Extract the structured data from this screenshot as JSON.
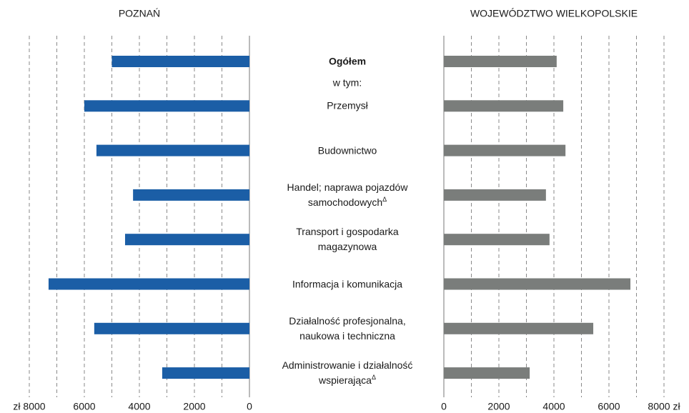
{
  "chart_data": {
    "type": "bar",
    "categories": [
      "Ogółem",
      "Przemysł",
      "Budownictwo",
      "Handel; naprawa pojazdów\nsamochodowych",
      "Transport i gospodarka\nmagazynowa",
      "Informacja i komunikacja",
      "Działalność profesjonalna,\nnaukowa i techniczna",
      "Administrowanie i działalność\nwspierająca"
    ],
    "category_marks": [
      null,
      null,
      null,
      "Δ",
      null,
      null,
      null,
      "Δ"
    ],
    "category_note": "w tym:",
    "xlim": [
      0,
      8000
    ],
    "minor_xticks": [
      1000,
      3000,
      5000,
      7000
    ],
    "grid": true,
    "series": [
      {
        "name": "POZNAŃ",
        "color": "#1b5ea6",
        "direction": "left",
        "values": [
          5000,
          6000,
          5560,
          4230,
          4520,
          7300,
          5640,
          3170
        ],
        "xticks": [
          0,
          2000,
          4000,
          6000,
          {
            "value": 8000,
            "label": "zł 8000"
          }
        ]
      },
      {
        "name": "WOJEWÓDZTWO WIELKOPOLSKIE",
        "color": "#7a7d7b",
        "direction": "right",
        "values": [
          4100,
          4340,
          4420,
          3710,
          3840,
          6780,
          5430,
          3120
        ],
        "xticks": [
          0,
          2000,
          4000,
          6000,
          {
            "value": 8000,
            "label": "8000 zł"
          }
        ]
      }
    ]
  }
}
